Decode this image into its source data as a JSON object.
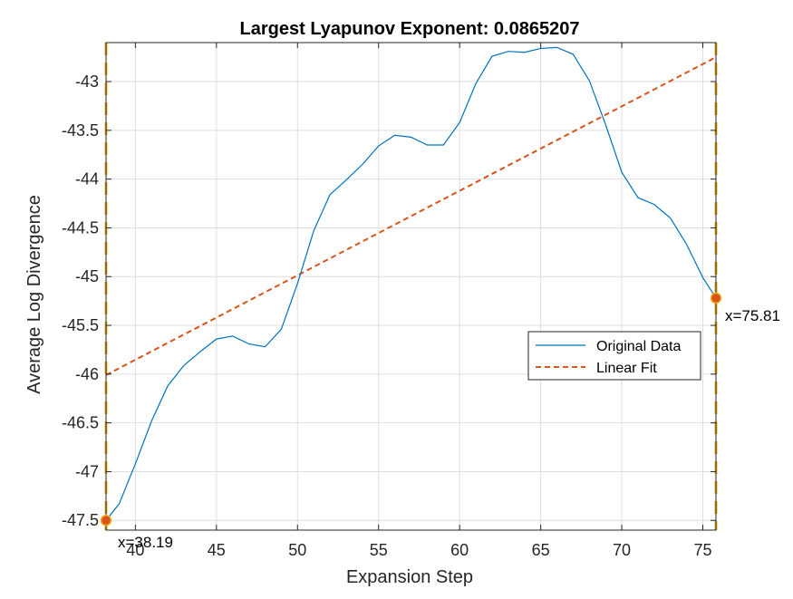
{
  "chart_data": {
    "type": "line",
    "title": "Largest Lyapunov Exponent: 0.0865207",
    "xlabel": "Expansion Step",
    "ylabel": "Average Log Divergence",
    "xlim": [
      38.19,
      75.81
    ],
    "ylim": [
      -47.6,
      -42.6
    ],
    "xticks": [
      40,
      45,
      50,
      55,
      60,
      65,
      70,
      75
    ],
    "yticks": [
      -47.5,
      -47,
      -46.5,
      -46,
      -45.5,
      -45,
      -44.5,
      -44,
      -43.5,
      -43
    ],
    "grid": true,
    "legend_position": "right",
    "series": [
      {
        "name": "Original Data",
        "style": "solid",
        "color": "#0072bd",
        "x": [
          38.19,
          39,
          40,
          41,
          42,
          43,
          44,
          45,
          46,
          47,
          48,
          49,
          50,
          51,
          52,
          53,
          54,
          55,
          56,
          57,
          58,
          59,
          60,
          61,
          62,
          63,
          64,
          65,
          66,
          67,
          68,
          69,
          70,
          71,
          72,
          73,
          74,
          75,
          75.81
        ],
        "y": [
          -47.5,
          -47.33,
          -46.92,
          -46.48,
          -46.12,
          -45.91,
          -45.77,
          -45.64,
          -45.61,
          -45.69,
          -45.72,
          -45.54,
          -45.07,
          -44.53,
          -44.16,
          -44.01,
          -43.85,
          -43.66,
          -43.55,
          -43.57,
          -43.65,
          -43.65,
          -43.42,
          -43.02,
          -42.74,
          -42.69,
          -42.7,
          -42.66,
          -42.65,
          -42.72,
          -42.99,
          -43.44,
          -43.93,
          -44.19,
          -44.26,
          -44.4,
          -44.67,
          -45.01,
          -45.22
        ]
      },
      {
        "name": "Linear Fit",
        "style": "dashed",
        "color": "#d95319",
        "x": [
          38.19,
          75.81
        ],
        "y": [
          -46.01,
          -42.75
        ]
      }
    ],
    "markers": [
      {
        "x": 38.19,
        "y": -47.5,
        "label": "x=38.19"
      },
      {
        "x": 75.81,
        "y": -45.22,
        "label": "x=75.81"
      }
    ],
    "vlines": [
      38.19,
      75.81
    ],
    "vline_color": "#edb120",
    "marker_color": "#d95319"
  }
}
